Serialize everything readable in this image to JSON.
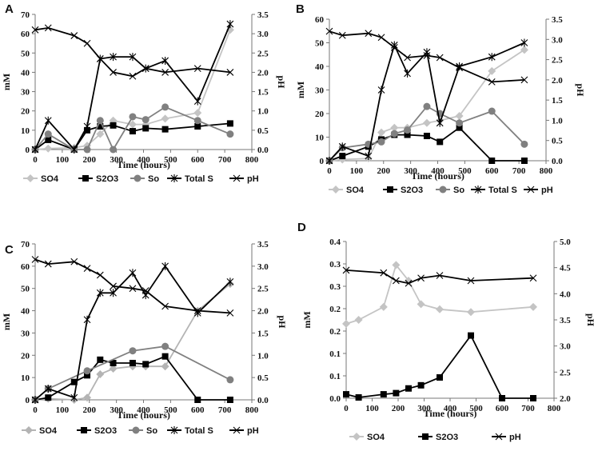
{
  "chart_data": [
    {
      "type": "line",
      "panel": "A",
      "xlabel": "Time (hours)",
      "ylabel": "mM",
      "y2label": "pH",
      "xlim": [
        0,
        800
      ],
      "ylim": [
        0,
        70
      ],
      "y2lim": [
        0,
        3.5
      ],
      "xticks": [
        "0",
        "100",
        "200",
        "300",
        "400",
        "500",
        "600",
        "700",
        "800"
      ],
      "yticks": [
        "0",
        "10",
        "20",
        "30",
        "40",
        "50",
        "60",
        "70"
      ],
      "y2ticks": [
        "0.0",
        "0.5",
        "1.0",
        "1.5",
        "2.0",
        "2.5",
        "3.0",
        "3.5"
      ],
      "legend": [
        "SO4",
        "S2O3",
        "So",
        "Total S",
        "pH"
      ],
      "series": [
        {
          "name": "SO4",
          "color": "#c4c4c4",
          "marker": "diamond",
          "axis": "left",
          "x": [
            0,
            48,
            144,
            192,
            240,
            288,
            360,
            408,
            480,
            600,
            720
          ],
          "y": [
            0,
            0.5,
            1,
            2,
            8,
            15,
            13,
            13,
            16,
            19,
            62
          ]
        },
        {
          "name": "S2O3",
          "color": "#000000",
          "marker": "square",
          "axis": "left",
          "x": [
            0,
            48,
            144,
            192,
            240,
            288,
            360,
            408,
            480,
            600,
            720
          ],
          "y": [
            0,
            5,
            0,
            10,
            12,
            12.5,
            9.5,
            11,
            10.5,
            12,
            13.5
          ]
        },
        {
          "name": "So",
          "color": "#808080",
          "marker": "circle",
          "axis": "left",
          "x": [
            0,
            48,
            144,
            192,
            240,
            288,
            360,
            408,
            480,
            600,
            720
          ],
          "y": [
            0,
            8,
            0,
            0,
            15,
            0,
            17,
            15.5,
            22,
            15,
            8
          ]
        },
        {
          "name": "Total S",
          "color": "#000000",
          "marker": "star",
          "axis": "left",
          "x": [
            0,
            48,
            144,
            192,
            240,
            288,
            360,
            408,
            480,
            600,
            720
          ],
          "y": [
            0,
            15,
            0,
            12,
            47,
            48,
            48,
            42,
            46,
            25,
            65
          ]
        },
        {
          "name": "pH",
          "color": "#000000",
          "marker": "x",
          "axis": "right",
          "x": [
            0,
            48,
            144,
            192,
            240,
            288,
            360,
            408,
            480,
            600,
            720
          ],
          "y": [
            3.1,
            3.15,
            2.95,
            2.75,
            2.35,
            2.0,
            1.9,
            2.1,
            2.0,
            2.1,
            2.0
          ]
        }
      ]
    },
    {
      "type": "line",
      "panel": "B",
      "xlabel": "Time (hours)",
      "ylabel": "mM",
      "y2label": "pH",
      "xlim": [
        0,
        800
      ],
      "ylim": [
        0,
        60
      ],
      "y2lim": [
        0,
        3.5
      ],
      "xticks": [
        "0",
        "100",
        "200",
        "300",
        "400",
        "500",
        "600",
        "700",
        "800"
      ],
      "yticks": [
        "0",
        "10",
        "20",
        "30",
        "40",
        "50",
        "60"
      ],
      "y2ticks": [
        "0.0",
        "0.5",
        "1.0",
        "1.5",
        "2.0",
        "2.5",
        "3.0",
        "3.5"
      ],
      "legend": [
        "SO4",
        "S2O3",
        "So",
        "Total S",
        "pH"
      ],
      "series": [
        {
          "name": "SO4",
          "color": "#c4c4c4",
          "marker": "diamond",
          "axis": "left",
          "x": [
            0,
            48,
            144,
            192,
            240,
            288,
            360,
            408,
            480,
            600,
            720
          ],
          "y": [
            0,
            0.5,
            1,
            12,
            14,
            14,
            16,
            17,
            19,
            38,
            47
          ]
        },
        {
          "name": "S2O3",
          "color": "#000000",
          "marker": "square",
          "axis": "left",
          "x": [
            0,
            48,
            144,
            192,
            240,
            288,
            360,
            408,
            480,
            600,
            720
          ],
          "y": [
            0,
            2,
            6,
            9,
            11,
            11,
            10.5,
            8,
            14,
            0,
            0
          ]
        },
        {
          "name": "So",
          "color": "#808080",
          "marker": "circle",
          "axis": "left",
          "x": [
            0,
            48,
            144,
            192,
            240,
            288,
            360,
            408,
            480,
            600,
            720
          ],
          "y": [
            0,
            5.5,
            7,
            8,
            11.5,
            13,
            23,
            20,
            16,
            21,
            7
          ]
        },
        {
          "name": "Total S",
          "color": "#000000",
          "marker": "star",
          "axis": "left",
          "x": [
            0,
            48,
            144,
            192,
            240,
            288,
            360,
            408,
            480,
            600,
            720
          ],
          "y": [
            0,
            6,
            2,
            30,
            49,
            37,
            46,
            16,
            40,
            44,
            50
          ]
        },
        {
          "name": "pH",
          "color": "#000000",
          "marker": "x",
          "axis": "right",
          "x": [
            0,
            48,
            144,
            192,
            240,
            288,
            360,
            408,
            480,
            600,
            720
          ],
          "y": [
            3.2,
            3.1,
            3.15,
            3.05,
            2.8,
            2.55,
            2.6,
            2.55,
            2.3,
            1.95,
            2.0
          ]
        }
      ]
    },
    {
      "type": "line",
      "panel": "C",
      "xlabel": "Time (hours)",
      "ylabel": "mM",
      "y2label": "pH",
      "xlim": [
        0,
        800
      ],
      "ylim": [
        0,
        70
      ],
      "y2lim": [
        0,
        3.5
      ],
      "xticks": [
        "0",
        "100",
        "200",
        "300",
        "400",
        "500",
        "600",
        "700",
        "800"
      ],
      "yticks": [
        "0",
        "10",
        "20",
        "30",
        "40",
        "50",
        "60",
        "70"
      ],
      "y2ticks": [
        "0.0",
        "0.5",
        "1.0",
        "1.5",
        "2.0",
        "2.5",
        "3.0",
        "3.5"
      ],
      "legend": [
        "SO4",
        "S2O3",
        "So",
        "Total S",
        "pH"
      ],
      "series": [
        {
          "name": "SO4",
          "color": "#b4b4b4",
          "marker": "diamond",
          "axis": "left",
          "x": [
            0,
            48,
            144,
            192,
            240,
            288,
            360,
            408,
            480,
            600,
            720
          ],
          "y": [
            0,
            0.5,
            0,
            1,
            11.5,
            14,
            15,
            15,
            15,
            40,
            52
          ]
        },
        {
          "name": "S2O3",
          "color": "#000000",
          "marker": "square",
          "axis": "left",
          "x": [
            0,
            48,
            144,
            192,
            240,
            288,
            360,
            408,
            480,
            600,
            720
          ],
          "y": [
            0,
            1,
            8,
            11,
            18,
            16.5,
            16.5,
            16,
            19.5,
            0,
            0
          ]
        },
        {
          "name": "So",
          "color": "#808080",
          "marker": "circle",
          "axis": "left",
          "x": [
            0,
            48,
            192,
            360,
            480,
            720
          ],
          "y": [
            0,
            5,
            13,
            22,
            24,
            9
          ]
        },
        {
          "name": "Total S",
          "color": "#000000",
          "marker": "star",
          "axis": "left",
          "x": [
            0,
            48,
            144,
            192,
            240,
            288,
            360,
            408,
            480,
            600,
            720
          ],
          "y": [
            0,
            5,
            1,
            36,
            48,
            48,
            57,
            47,
            60,
            39,
            53
          ]
        },
        {
          "name": "pH",
          "color": "#000000",
          "marker": "x",
          "axis": "right",
          "x": [
            0,
            48,
            144,
            192,
            240,
            288,
            360,
            408,
            480,
            600,
            720
          ],
          "y": [
            3.15,
            3.05,
            3.1,
            2.95,
            2.8,
            2.55,
            2.5,
            2.45,
            2.1,
            2.0,
            1.95
          ]
        }
      ]
    },
    {
      "type": "line",
      "panel": "D",
      "xlabel": "Time (hours)",
      "ylabel": "mM",
      "y2label": "pH",
      "xlim": [
        0,
        800
      ],
      "ylim": [
        0,
        0.4
      ],
      "y2lim": [
        2.0,
        5.0
      ],
      "xticks": [
        "0",
        "100",
        "200",
        "300",
        "400",
        "500",
        "600",
        "700",
        "800"
      ],
      "yticks": [
        "0.0",
        "0.1",
        "0.1",
        "0.2",
        "0.2",
        "0.3",
        "0.3",
        "0.4"
      ],
      "y2ticks": [
        "2.0",
        "2.5",
        "3.0",
        "3.5",
        "4.0",
        "4.5",
        "5.0"
      ],
      "legend": [
        "SO4",
        "S2O3",
        "pH"
      ],
      "series": [
        {
          "name": "SO4",
          "color": "#c4c4c4",
          "marker": "diamond",
          "axis": "left",
          "x": [
            0,
            48,
            144,
            192,
            240,
            288,
            360,
            480,
            720
          ],
          "y": [
            0.19,
            0.2,
            0.233,
            0.34,
            0.3,
            0.24,
            0.227,
            0.22,
            0.233
          ]
        },
        {
          "name": "S2O3",
          "color": "#000000",
          "marker": "square",
          "axis": "left",
          "x": [
            0,
            48,
            144,
            192,
            240,
            288,
            360,
            480,
            600,
            720
          ],
          "y": [
            0.01,
            0.002,
            0.01,
            0.013,
            0.025,
            0.033,
            0.053,
            0.16,
            0.0,
            0.0
          ]
        },
        {
          "name": "pH",
          "color": "#000000",
          "marker": "x",
          "axis": "right",
          "x": [
            0,
            144,
            192,
            240,
            288,
            360,
            480,
            720
          ],
          "y": [
            4.45,
            4.4,
            4.25,
            4.2,
            4.3,
            4.35,
            4.25,
            4.3
          ]
        }
      ]
    }
  ]
}
